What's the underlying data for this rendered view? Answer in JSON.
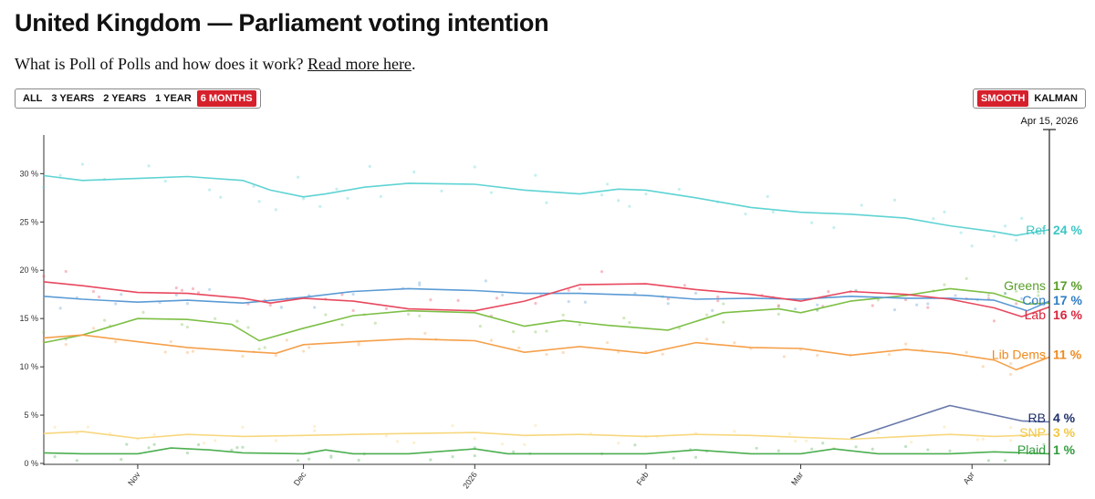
{
  "header": {
    "title": "United Kingdom — Parliament voting intention",
    "subtitle_text": "What is Poll of Polls and how does it work? ",
    "subtitle_link": "Read more here",
    "subtitle_end": "."
  },
  "controls": {
    "range_buttons": [
      "ALL",
      "3 YEARS",
      "2 YEARS",
      "1 YEAR",
      "6 MONTHS"
    ],
    "active_range": "6 MONTHS",
    "method_buttons": [
      "SMOOTH",
      "KALMAN"
    ],
    "active_method": "SMOOTH",
    "accent_color": "#d6202b"
  },
  "chart_data": {
    "type": "line",
    "date_range": [
      "2025-10-15",
      "2026-04-15"
    ],
    "current_date_label": "Apr 15, 2026",
    "ylim": [
      0,
      34
    ],
    "y_ticks": [
      {
        "value": 0,
        "label": "0 %"
      },
      {
        "value": 5,
        "label": "5 %"
      },
      {
        "value": 10,
        "label": "10 %"
      },
      {
        "value": 15,
        "label": "15 %"
      },
      {
        "value": 20,
        "label": "20 %"
      },
      {
        "value": 25,
        "label": "25 %"
      },
      {
        "value": 30,
        "label": "30 %"
      }
    ],
    "x_ticks": [
      {
        "date": "2025-11-01",
        "label": "Nov"
      },
      {
        "date": "2025-12-01",
        "label": "Dec"
      },
      {
        "date": "2026-01-01",
        "label": "2026"
      },
      {
        "date": "2026-02-01",
        "label": "Feb"
      },
      {
        "date": "2026-03-01",
        "label": "Mar"
      },
      {
        "date": "2026-04-01",
        "label": "Apr"
      }
    ],
    "grid": false,
    "legend": "inline labels at right end of lines",
    "series": [
      {
        "name": "Ref",
        "current": "24 %",
        "color": "#5fd3d3",
        "points": [
          [
            "2025-10-15",
            29.8
          ],
          [
            "2025-10-22",
            29.3
          ],
          [
            "2025-11-01",
            29.5
          ],
          [
            "2025-11-10",
            29.7
          ],
          [
            "2025-11-20",
            29.3
          ],
          [
            "2025-11-25",
            28.3
          ],
          [
            "2025-12-01",
            27.6
          ],
          [
            "2025-12-05",
            27.9
          ],
          [
            "2025-12-12",
            28.6
          ],
          [
            "2025-12-20",
            29.0
          ],
          [
            "2026-01-01",
            28.9
          ],
          [
            "2026-01-10",
            28.3
          ],
          [
            "2026-01-20",
            27.9
          ],
          [
            "2026-01-27",
            28.4
          ],
          [
            "2026-02-01",
            28.3
          ],
          [
            "2026-02-10",
            27.5
          ],
          [
            "2026-02-20",
            26.5
          ],
          [
            "2026-03-01",
            26.0
          ],
          [
            "2026-03-10",
            25.8
          ],
          [
            "2026-03-20",
            25.4
          ],
          [
            "2026-03-28",
            24.6
          ],
          [
            "2026-04-05",
            24.0
          ],
          [
            "2026-04-09",
            23.6
          ],
          [
            "2026-04-15",
            24.2
          ]
        ]
      },
      {
        "name": "Greens",
        "current": "17 %",
        "color": "#7cbf45",
        "points": [
          [
            "2025-10-15",
            12.5
          ],
          [
            "2025-10-22",
            13.3
          ],
          [
            "2025-11-01",
            15.0
          ],
          [
            "2025-11-10",
            14.9
          ],
          [
            "2025-11-18",
            14.4
          ],
          [
            "2025-11-23",
            12.7
          ],
          [
            "2025-12-01",
            14.0
          ],
          [
            "2025-12-10",
            15.3
          ],
          [
            "2025-12-20",
            15.8
          ],
          [
            "2026-01-01",
            15.6
          ],
          [
            "2026-01-10",
            14.2
          ],
          [
            "2026-01-17",
            14.8
          ],
          [
            "2026-01-25",
            14.3
          ],
          [
            "2026-02-05",
            13.8
          ],
          [
            "2026-02-15",
            15.6
          ],
          [
            "2026-02-25",
            16.0
          ],
          [
            "2026-03-01",
            15.6
          ],
          [
            "2026-03-10",
            16.8
          ],
          [
            "2026-03-20",
            17.4
          ],
          [
            "2026-03-28",
            18.1
          ],
          [
            "2026-04-05",
            17.6
          ],
          [
            "2026-04-11",
            16.5
          ],
          [
            "2026-04-15",
            16.6
          ]
        ]
      },
      {
        "name": "Con",
        "current": "17 %",
        "color": "#5b9bd5",
        "points": [
          [
            "2025-10-15",
            17.3
          ],
          [
            "2025-10-22",
            17.0
          ],
          [
            "2025-11-01",
            16.7
          ],
          [
            "2025-11-10",
            16.9
          ],
          [
            "2025-11-20",
            16.6
          ],
          [
            "2025-12-01",
            17.2
          ],
          [
            "2025-12-10",
            17.8
          ],
          [
            "2025-12-20",
            18.1
          ],
          [
            "2026-01-01",
            17.9
          ],
          [
            "2026-01-10",
            17.6
          ],
          [
            "2026-01-20",
            17.6
          ],
          [
            "2026-02-01",
            17.4
          ],
          [
            "2026-02-10",
            17.0
          ],
          [
            "2026-02-20",
            17.1
          ],
          [
            "2026-03-01",
            17.0
          ],
          [
            "2026-03-10",
            17.3
          ],
          [
            "2026-03-20",
            17.1
          ],
          [
            "2026-03-28",
            17.1
          ],
          [
            "2026-04-05",
            16.9
          ],
          [
            "2026-04-11",
            15.8
          ],
          [
            "2026-04-15",
            16.8
          ]
        ]
      },
      {
        "name": "Lab",
        "current": "16 %",
        "color": "#e8485e",
        "points": [
          [
            "2025-10-15",
            18.8
          ],
          [
            "2025-10-22",
            18.4
          ],
          [
            "2025-11-01",
            17.7
          ],
          [
            "2025-11-10",
            17.6
          ],
          [
            "2025-11-20",
            17.1
          ],
          [
            "2025-11-25",
            16.6
          ],
          [
            "2025-12-01",
            17.1
          ],
          [
            "2025-12-10",
            16.8
          ],
          [
            "2025-12-20",
            16.0
          ],
          [
            "2026-01-01",
            15.8
          ],
          [
            "2026-01-10",
            16.8
          ],
          [
            "2026-01-20",
            18.5
          ],
          [
            "2026-02-01",
            18.6
          ],
          [
            "2026-02-10",
            18.0
          ],
          [
            "2026-02-20",
            17.5
          ],
          [
            "2026-03-01",
            16.8
          ],
          [
            "2026-03-10",
            17.8
          ],
          [
            "2026-03-20",
            17.5
          ],
          [
            "2026-03-28",
            17.0
          ],
          [
            "2026-04-05",
            16.1
          ],
          [
            "2026-04-10",
            15.2
          ],
          [
            "2026-04-15",
            16.2
          ]
        ]
      },
      {
        "name": "Lib Dems",
        "current": "11 %",
        "color": "#f5a04a",
        "points": [
          [
            "2025-10-15",
            13.0
          ],
          [
            "2025-10-22",
            13.3
          ],
          [
            "2025-11-01",
            12.6
          ],
          [
            "2025-11-10",
            12.0
          ],
          [
            "2025-11-20",
            11.6
          ],
          [
            "2025-11-26",
            11.4
          ],
          [
            "2025-12-01",
            12.3
          ],
          [
            "2025-12-10",
            12.6
          ],
          [
            "2025-12-20",
            12.9
          ],
          [
            "2026-01-01",
            12.7
          ],
          [
            "2026-01-10",
            11.5
          ],
          [
            "2026-01-20",
            12.1
          ],
          [
            "2026-02-01",
            11.4
          ],
          [
            "2026-02-10",
            12.5
          ],
          [
            "2026-02-20",
            12.0
          ],
          [
            "2026-03-01",
            11.9
          ],
          [
            "2026-03-10",
            11.2
          ],
          [
            "2026-03-20",
            11.8
          ],
          [
            "2026-03-28",
            11.4
          ],
          [
            "2026-04-05",
            10.7
          ],
          [
            "2026-04-09",
            9.7
          ],
          [
            "2026-04-15",
            11.0
          ]
        ]
      },
      {
        "name": "RB",
        "current": "4 %",
        "color": "#6677aa",
        "points": [
          [
            "2026-03-10",
            2.6
          ],
          [
            "2026-03-28",
            6.0
          ],
          [
            "2026-04-10",
            4.4
          ],
          [
            "2026-04-15",
            4.3
          ]
        ]
      },
      {
        "name": "SNP",
        "current": "3 %",
        "color": "#f7d77e",
        "points": [
          [
            "2025-10-15",
            3.1
          ],
          [
            "2025-10-22",
            3.3
          ],
          [
            "2025-11-01",
            2.6
          ],
          [
            "2025-11-10",
            3.0
          ],
          [
            "2025-11-20",
            2.8
          ],
          [
            "2025-12-01",
            2.9
          ],
          [
            "2025-12-10",
            3.0
          ],
          [
            "2025-12-20",
            3.1
          ],
          [
            "2026-01-01",
            3.2
          ],
          [
            "2026-01-10",
            2.9
          ],
          [
            "2026-01-20",
            3.0
          ],
          [
            "2026-02-01",
            2.8
          ],
          [
            "2026-02-10",
            3.0
          ],
          [
            "2026-02-20",
            2.9
          ],
          [
            "2026-03-01",
            2.7
          ],
          [
            "2026-03-10",
            2.5
          ],
          [
            "2026-03-20",
            2.8
          ],
          [
            "2026-03-28",
            3.0
          ],
          [
            "2026-04-05",
            2.8
          ],
          [
            "2026-04-15",
            3.0
          ]
        ]
      },
      {
        "name": "Plaid",
        "current": "1 %",
        "color": "#4caf50",
        "points": [
          [
            "2025-10-15",
            1.1
          ],
          [
            "2025-10-22",
            1.0
          ],
          [
            "2025-11-01",
            1.0
          ],
          [
            "2025-11-07",
            1.6
          ],
          [
            "2025-11-14",
            1.4
          ],
          [
            "2025-11-20",
            1.1
          ],
          [
            "2025-12-01",
            1.0
          ],
          [
            "2025-12-05",
            1.4
          ],
          [
            "2025-12-10",
            1.0
          ],
          [
            "2025-12-20",
            1.0
          ],
          [
            "2026-01-01",
            1.5
          ],
          [
            "2026-01-07",
            1.0
          ],
          [
            "2026-01-20",
            1.0
          ],
          [
            "2026-02-01",
            1.0
          ],
          [
            "2026-02-10",
            1.4
          ],
          [
            "2026-02-20",
            1.0
          ],
          [
            "2026-03-01",
            1.0
          ],
          [
            "2026-03-07",
            1.5
          ],
          [
            "2026-03-15",
            1.0
          ],
          [
            "2026-03-28",
            1.0
          ],
          [
            "2026-04-05",
            1.2
          ],
          [
            "2026-04-15",
            1.0
          ]
        ]
      }
    ]
  }
}
